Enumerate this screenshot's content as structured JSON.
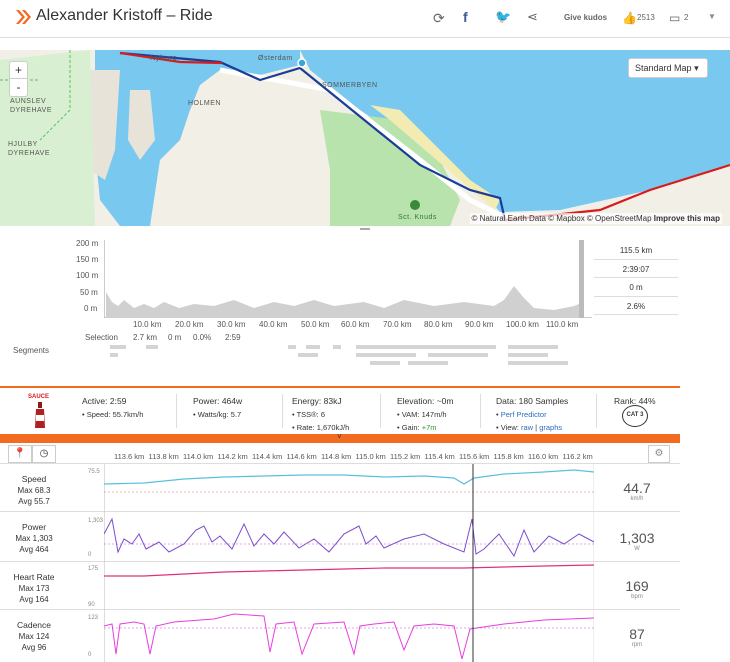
{
  "header": {
    "title": "Alexander Kristoff – Ride",
    "kudos": "Give kudos",
    "kudos_count": "2513",
    "comments": "2"
  },
  "map": {
    "style_button": "Standard Map",
    "attribution_a": "© Natural Earth Data © Mapbox © OpenStreetMap ",
    "attribution_b": "Improve this map",
    "zoom_in": "+",
    "zoom_out": "-",
    "labels": [
      "Nyborg",
      "Østerdam",
      "SOMMERBYEN",
      "HOLMEN",
      "AUNSLEV\nDYREHAVE",
      "HJULBY\nDYREHAVE",
      "Sct. Knuds"
    ]
  },
  "elevation": {
    "y_ticks": [
      "200 m",
      "150 m",
      "100 m",
      "50 m",
      "0 m"
    ],
    "x_ticks": [
      "10.0 km",
      "20.0 km",
      "30.0 km",
      "40.0 km",
      "50.0 km",
      "60.0 km",
      "70.0 km",
      "80.0 km",
      "90.0 km",
      "100.0 km",
      "110.0 km"
    ],
    "stats": [
      "115.5 km",
      "2:39:07",
      "0 m",
      "2.6%"
    ],
    "selection_label": "Selection",
    "selection": [
      "2.7 km",
      "0 m",
      "0.0%",
      "2:59"
    ],
    "segments_label": "Segments"
  },
  "info": {
    "sauce": "SAUCE",
    "active": "Active: 2:59",
    "speed": "• Speed: 55.7km/h",
    "power": "Power: 464w",
    "watts": "• Watts/kg: 5.7",
    "energy": "Energy: 83kJ",
    "tss": "• TSS®: 6",
    "rate": "• Rate: 1,670kJ/h",
    "elevation": "Elevation: ~0m",
    "vam": "• VAM: 147m/h",
    "gain_label": "• Gain: ",
    "gain": "+7m",
    "data": "Data: 180 Samples",
    "perf": "Perf Predictor",
    "view_label": "• View: ",
    "raw": "raw",
    "graphs": "graphs",
    "rank": "Rank: 44%",
    "cat": "CAT 3"
  },
  "streams": {
    "x_ticks": [
      "113.6 km",
      "113.8 km",
      "114.0 km",
      "114.2 km",
      "114.4 km",
      "114.6 km",
      "114.8 km",
      "115.0 km",
      "115.2 km",
      "115.4 km",
      "115.6 km",
      "115.8 km",
      "116.0 km",
      "116.2 km"
    ],
    "rows": [
      {
        "name": "Speed",
        "max": "Max 68.3",
        "avg": "Avg 55.7",
        "value": "44.7",
        "unit": "km/h",
        "ytop": "75.5",
        "ybot": ""
      },
      {
        "name": "Power",
        "max": "Max 1,303",
        "avg": "Avg 464",
        "value": "1,303",
        "unit": "W",
        "ytop": "1,303",
        "ybot": "0"
      },
      {
        "name": "Heart Rate",
        "max": "Max 173",
        "avg": "Avg 164",
        "value": "169",
        "unit": "bpm",
        "ytop": "175",
        "ybot": "90"
      },
      {
        "name": "Cadence",
        "max": "Max 124",
        "avg": "Avg 96",
        "value": "87",
        "unit": "rpm",
        "ytop": "123",
        "ybot": "0"
      }
    ]
  },
  "colors": {
    "accent": "#f26b21",
    "speed": "#5bc0de",
    "power": "#7c4dcc",
    "hr": "#e0307a",
    "cadence": "#e83ee0",
    "route": "#1a3d9a",
    "route_out": "#d81c1c"
  }
}
